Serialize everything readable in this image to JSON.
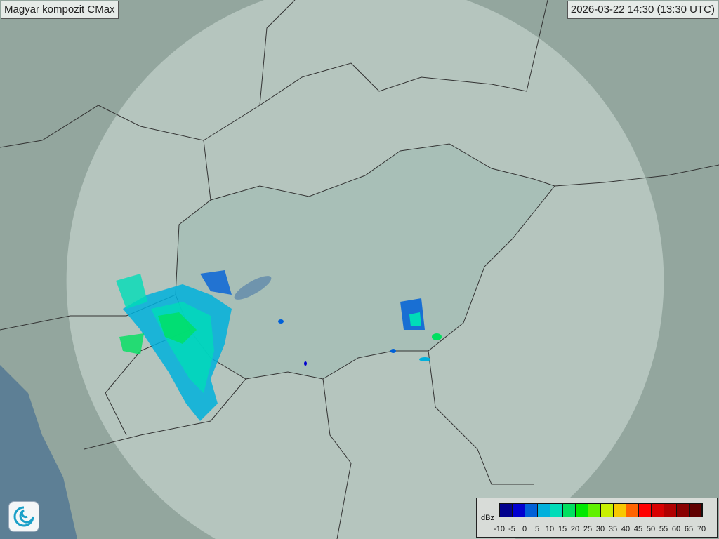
{
  "title": "Magyar kompozit  CMax",
  "timestamp": "2026-03-22 14:30 (13:30 UTC)",
  "logo": "omsz-swirl-logo",
  "legend": {
    "unit": "dBz",
    "ticks": [
      "-10",
      "-5",
      "0",
      "5",
      "10",
      "15",
      "20",
      "25",
      "30",
      "35",
      "40",
      "45",
      "50",
      "55",
      "60",
      "65",
      "70"
    ],
    "colors": [
      "#00008c",
      "#0000d0",
      "#0060d8",
      "#00b0dc",
      "#00dcb8",
      "#00e060",
      "#00e800",
      "#60f000",
      "#c8f000",
      "#f8c800",
      "#ff6400",
      "#ff0000",
      "#d80000",
      "#b00000",
      "#880000",
      "#600000"
    ]
  },
  "colors": {
    "terrain": "#8fa39a",
    "coverage": "#c9d8d2",
    "hungary": "#9fb7b0",
    "border": "#333333"
  }
}
